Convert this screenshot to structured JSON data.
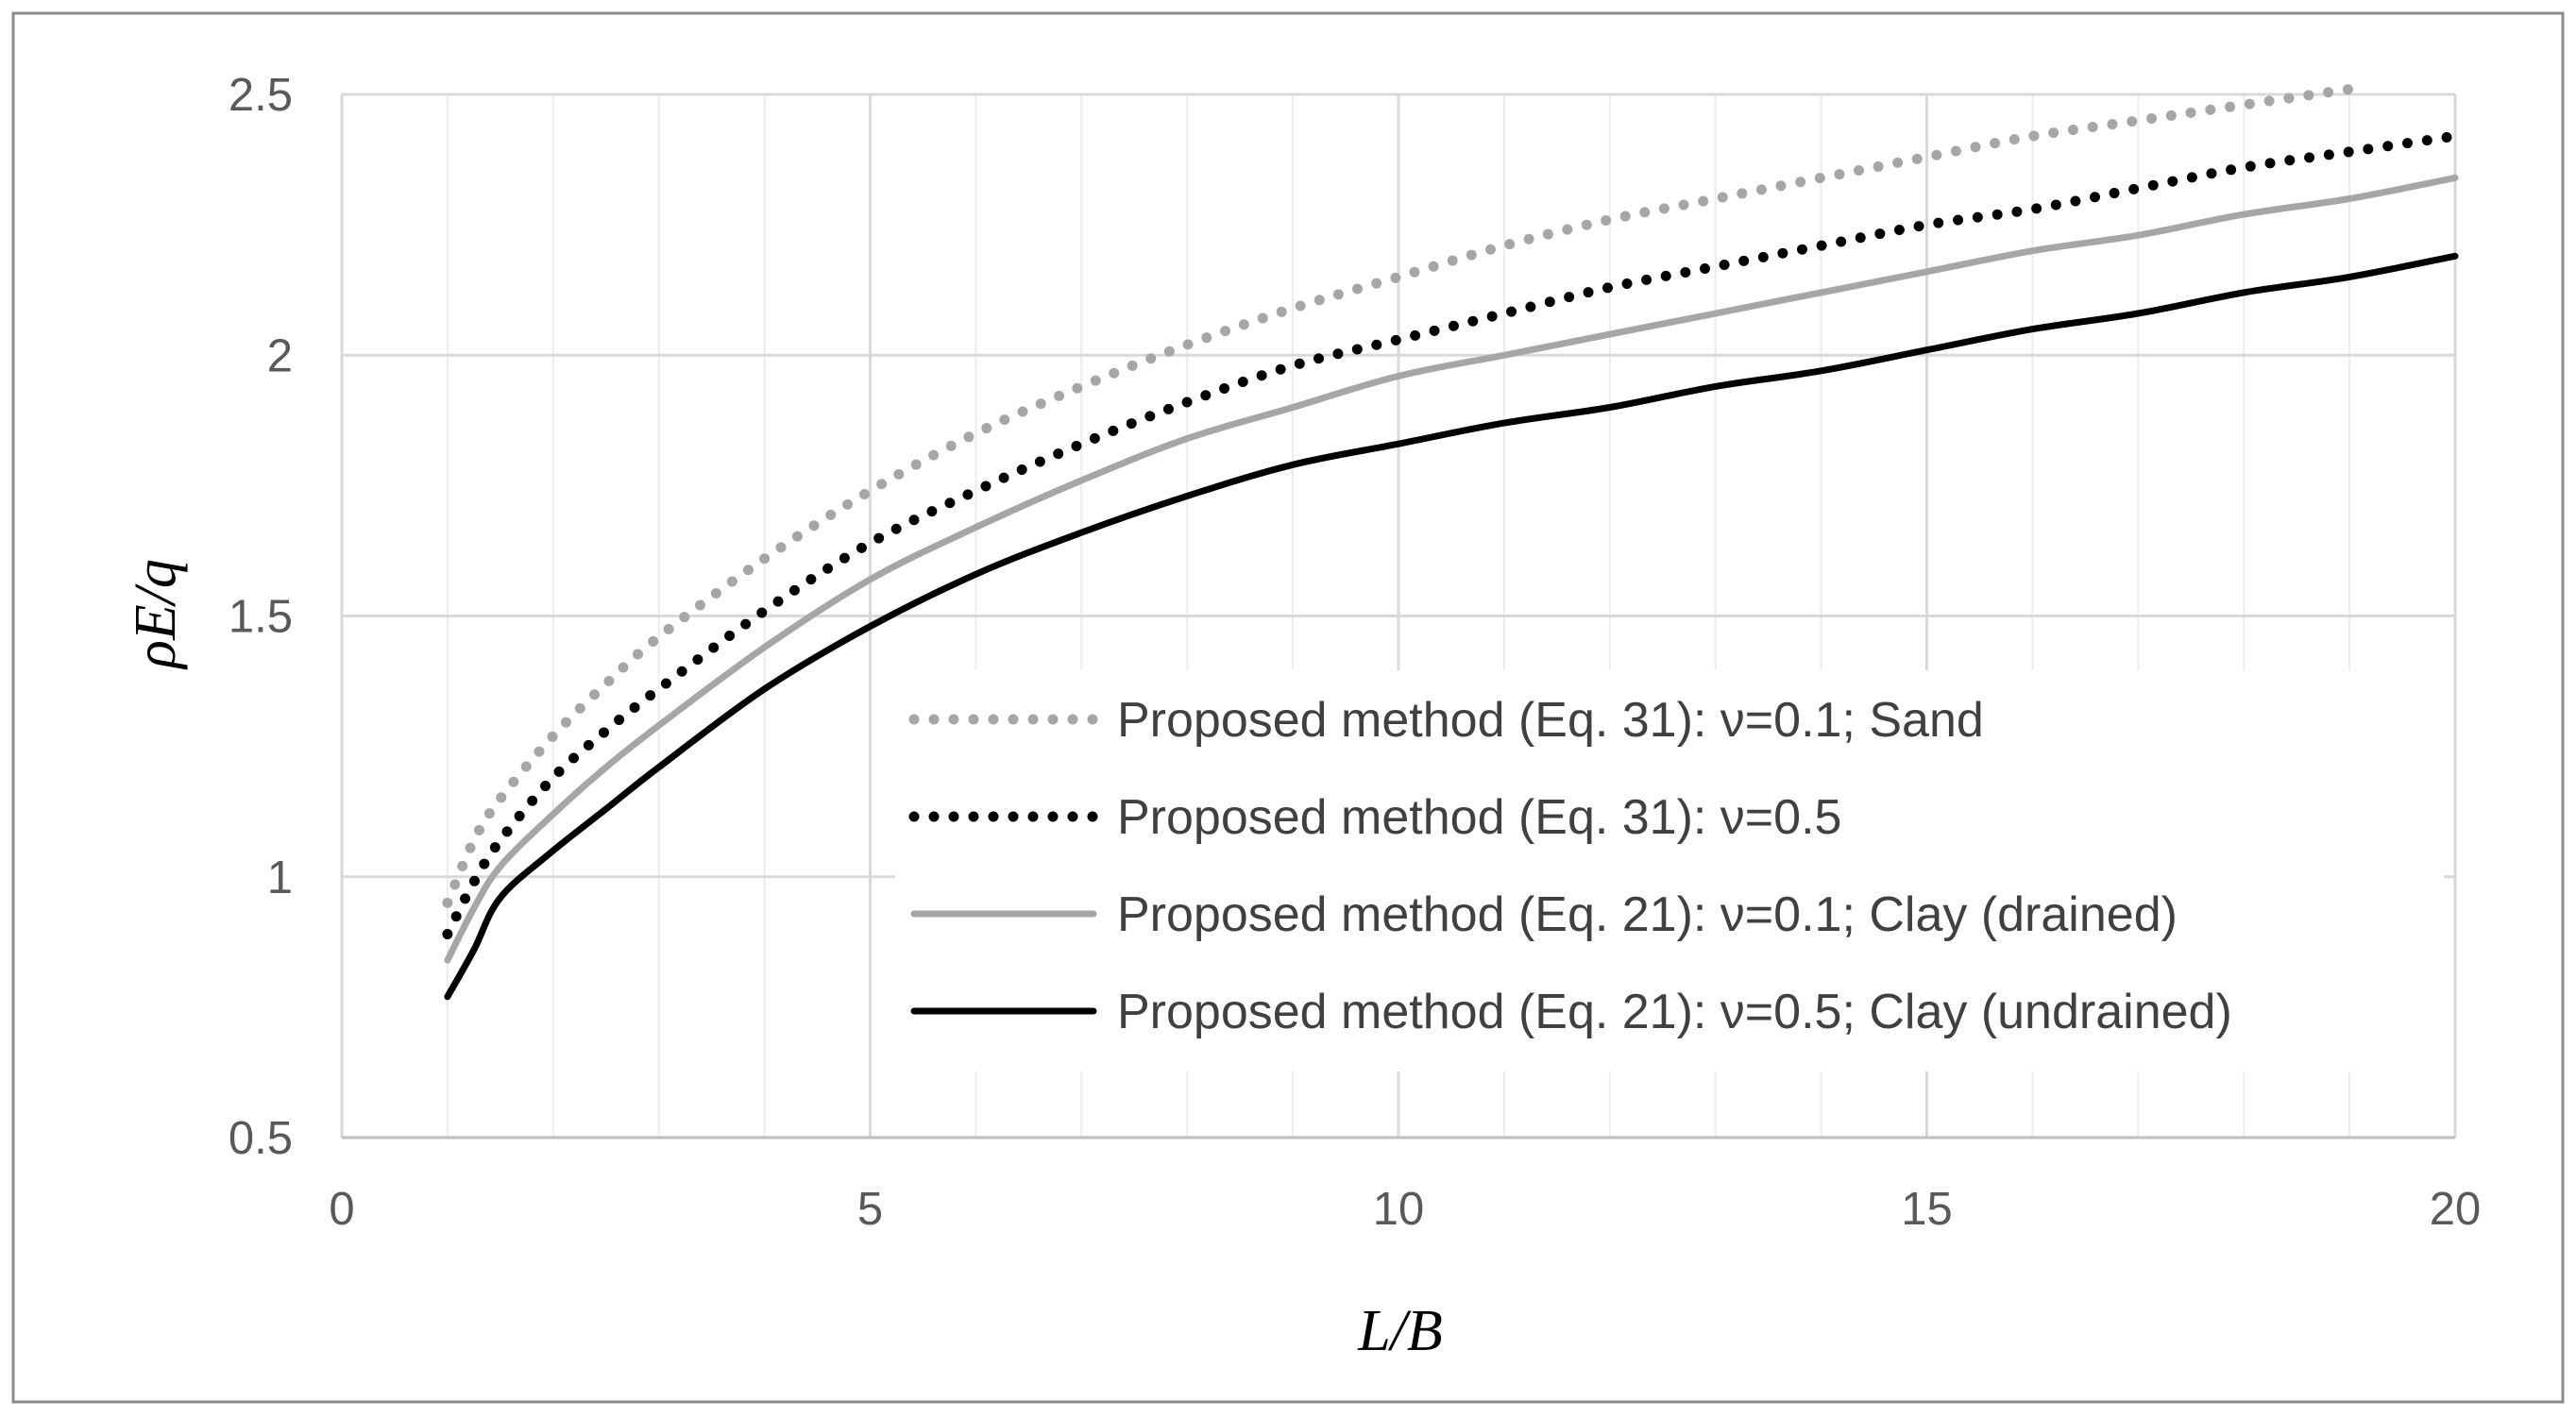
{
  "chart_data": {
    "type": "line",
    "title": "",
    "xlabel": "L/B",
    "ylabel": "ρE/q",
    "xlim": [
      0,
      20
    ],
    "ylim": [
      0.5,
      2.5
    ],
    "x_ticks": [
      "0",
      "5",
      "10",
      "15",
      "20"
    ],
    "y_ticks": [
      "0.5",
      "1",
      "1.5",
      "2",
      "2.5"
    ],
    "grid": true,
    "legend_position": "lower-right",
    "series": [
      {
        "name": "Proposed method (Eq. 31): ν=0.1; Sand",
        "color": "#a6a6a6",
        "style": "dotted",
        "x": [
          1,
          1.25,
          1.5,
          2,
          2.5,
          3,
          4,
          5,
          6,
          7,
          8,
          9,
          10,
          11,
          12,
          13,
          14,
          15,
          16,
          17,
          18,
          19
        ],
        "y": [
          0.95,
          1.07,
          1.15,
          1.27,
          1.37,
          1.46,
          1.61,
          1.74,
          1.85,
          1.94,
          2.02,
          2.09,
          2.15,
          2.21,
          2.26,
          2.3,
          2.34,
          2.38,
          2.42,
          2.45,
          2.48,
          2.51
        ]
      },
      {
        "name": "Proposed method (Eq. 31): ν=0.5",
        "color": "#000000",
        "style": "dotted",
        "x": [
          1,
          1.25,
          1.5,
          2,
          2.5,
          3,
          4,
          5,
          6,
          7,
          8,
          9,
          10,
          11,
          12,
          13,
          14,
          15,
          16,
          17,
          18,
          19,
          20
        ],
        "y": [
          0.89,
          0.99,
          1.07,
          1.19,
          1.28,
          1.36,
          1.51,
          1.64,
          1.74,
          1.83,
          1.91,
          1.98,
          2.03,
          2.08,
          2.13,
          2.17,
          2.21,
          2.25,
          2.28,
          2.32,
          2.36,
          2.39,
          2.42
        ]
      },
      {
        "name": "Proposed method (Eq. 21): ν=0.1; Clay (drained)",
        "color": "#a6a6a6",
        "style": "solid",
        "x": [
          1,
          1.25,
          1.5,
          2,
          2.5,
          3,
          4,
          5,
          6,
          7,
          8,
          9,
          10,
          11,
          12,
          13,
          14,
          15,
          16,
          17,
          18,
          19,
          20
        ],
        "y": [
          0.84,
          0.94,
          1.02,
          1.12,
          1.21,
          1.29,
          1.44,
          1.57,
          1.67,
          1.76,
          1.84,
          1.9,
          1.96,
          2.0,
          2.04,
          2.08,
          2.12,
          2.16,
          2.2,
          2.23,
          2.27,
          2.3,
          2.34
        ]
      },
      {
        "name": "Proposed method (Eq. 21): ν=0.5; Clay (undrained)",
        "color": "#000000",
        "style": "solid",
        "x": [
          1,
          1.25,
          1.5,
          2,
          2.5,
          3,
          4,
          5,
          6,
          7,
          8,
          9,
          10,
          11,
          12,
          13,
          14,
          15,
          16,
          17,
          18,
          19,
          20
        ],
        "y": [
          0.77,
          0.86,
          0.96,
          1.05,
          1.13,
          1.21,
          1.36,
          1.48,
          1.58,
          1.66,
          1.73,
          1.79,
          1.83,
          1.87,
          1.9,
          1.94,
          1.97,
          2.01,
          2.05,
          2.08,
          2.12,
          2.15,
          2.19
        ]
      }
    ]
  }
}
